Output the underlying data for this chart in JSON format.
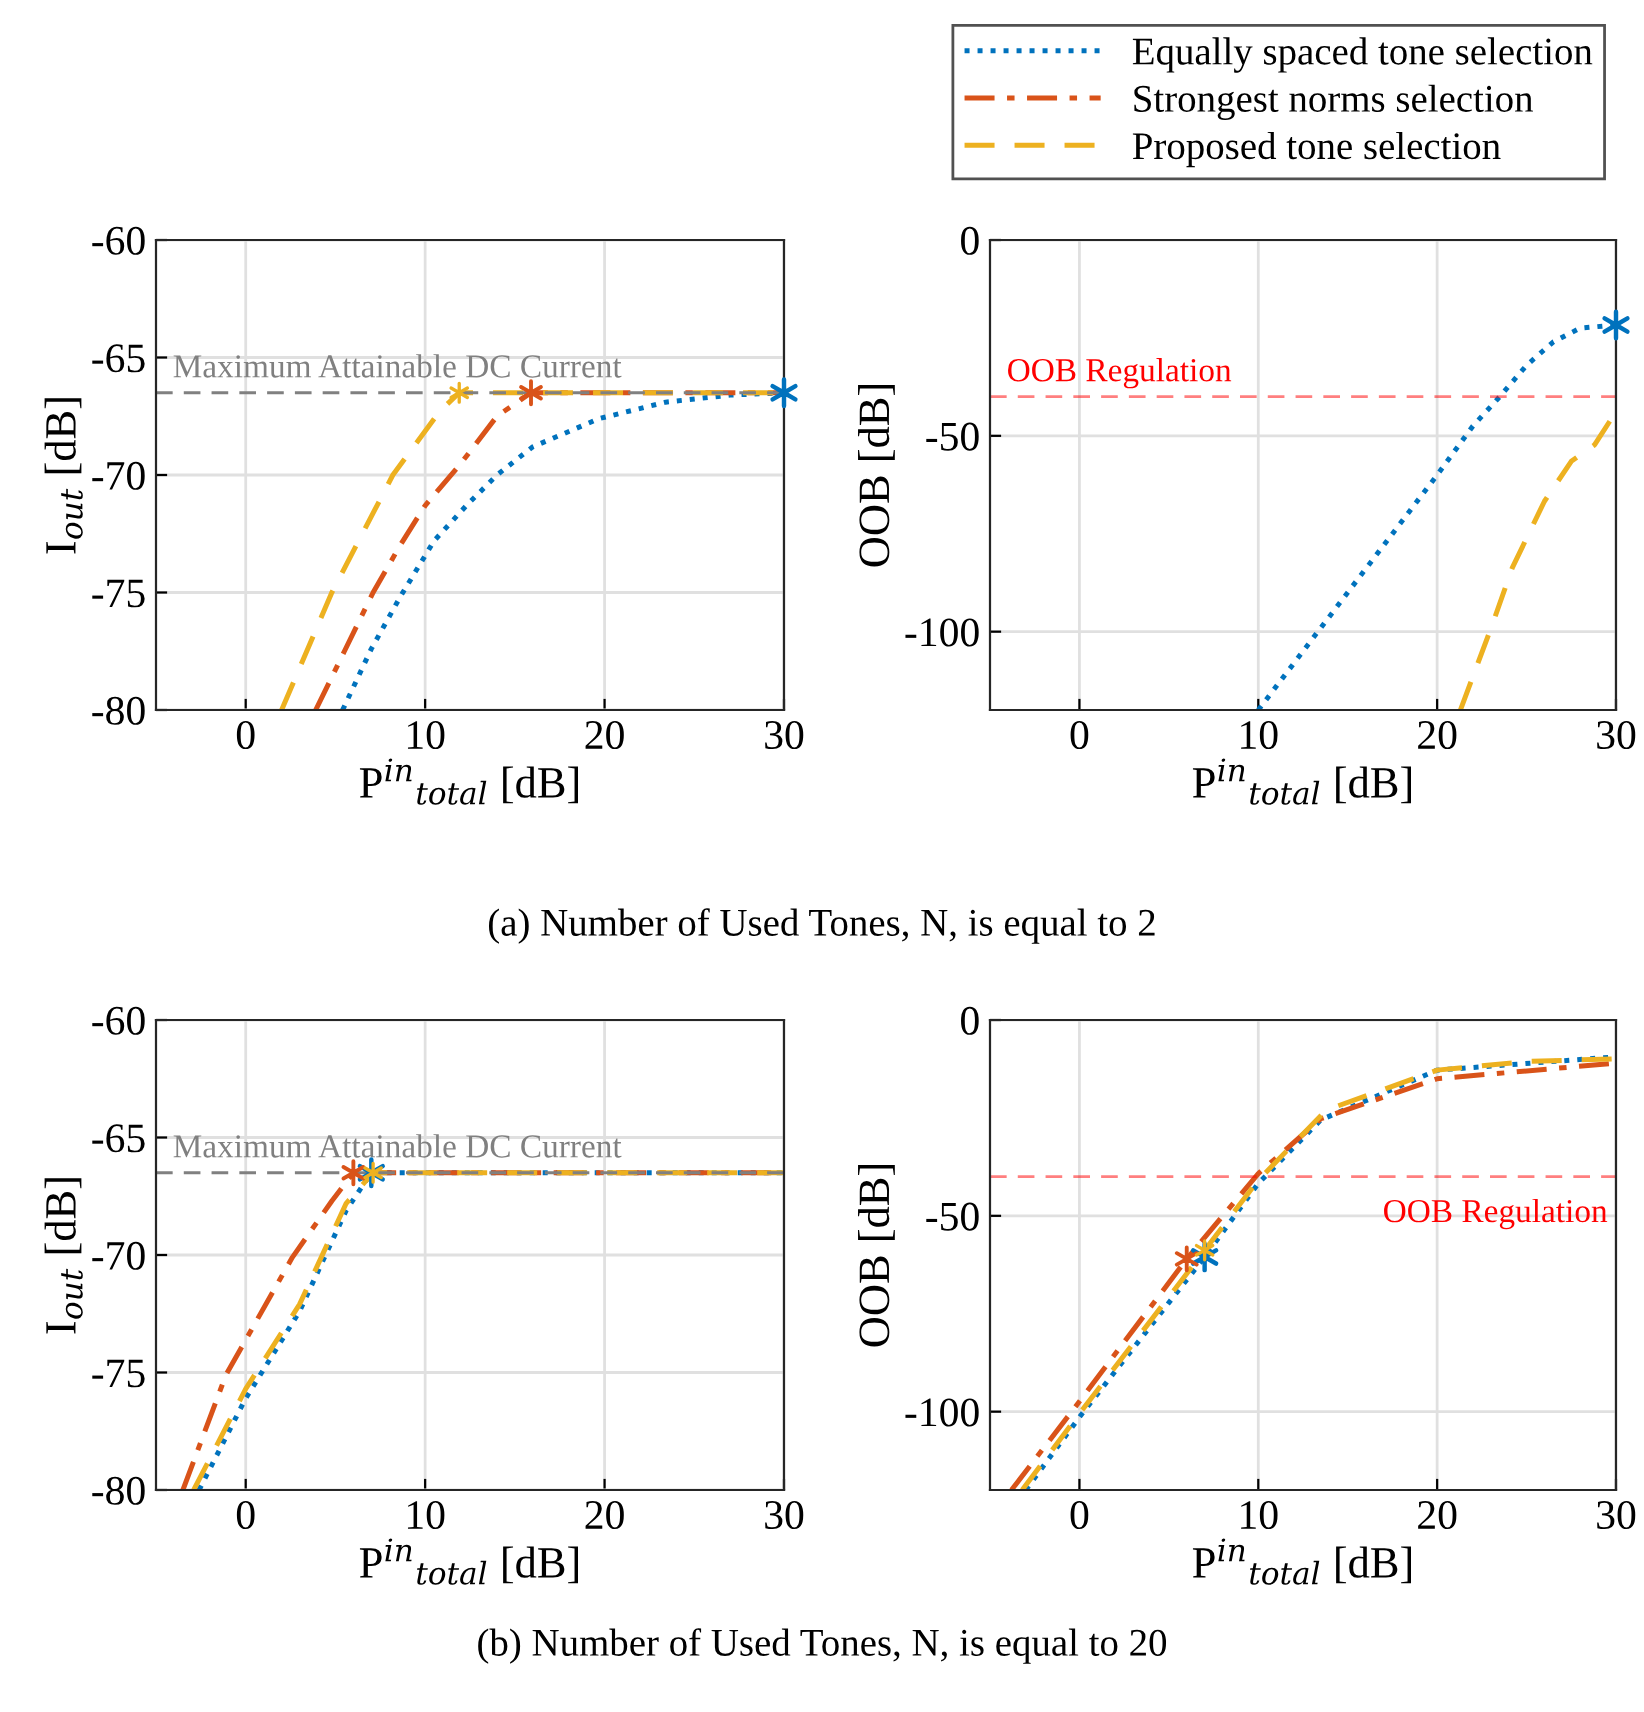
{
  "chart_data": [
    {
      "type": "line",
      "xlabel": "P$^{in}$$_{total}$ [dB]",
      "ylabel": "I$_{out}$ [dB]",
      "xlim": [
        -5,
        30
      ],
      "xticks": [
        0,
        10,
        20,
        30
      ],
      "ylim": [
        -80,
        -60
      ],
      "yticks": [
        -80,
        -75,
        -70,
        -65,
        -60
      ],
      "grid": true,
      "legend": "top right",
      "annotations": [
        "(a) Number of Used Tones, N, is equal to 2"
      ],
      "ref_lines": [
        {
          "axis": "y",
          "value": -66.5,
          "label": "Maximum Attainable DC Current",
          "color": "#808080",
          "line_style": "dashed"
        }
      ],
      "series": [
        {
          "name": "Equally spaced tone selection",
          "color": "#0072bd",
          "line_style": "dotted",
          "x": [
            5.4,
            7,
            8.6,
            10.5,
            12.3,
            14,
            16,
            19.7,
            23.4,
            27,
            30
          ],
          "values": [
            -80,
            -77.4,
            -75.2,
            -72.8,
            -71.3,
            -70,
            -68.8,
            -67.6,
            -66.9,
            -66.6,
            -66.5
          ]
        },
        {
          "name": "Strongest norms selection",
          "color": "#d95319",
          "line_style": "dashdot",
          "x": [
            3.9,
            5.5,
            7.1,
            8.6,
            10,
            12,
            14,
            15.9,
            30
          ],
          "values": [
            -80,
            -77.5,
            -75,
            -73,
            -71.3,
            -69.5,
            -67.5,
            -66.5,
            -66.5
          ]
        },
        {
          "name": "Proposed tone selection",
          "color": "#edb120",
          "line_style": "dashed",
          "x": [
            2,
            4.8,
            8.2,
            10.8,
            11.9,
            30
          ],
          "values": [
            -80,
            -75,
            -70,
            -67.3,
            -66.5,
            -66.5
          ]
        },
        {
          "type": "scatter",
          "marker": "cross",
          "color": "#0072bd",
          "x": [
            30
          ],
          "values": [
            -66.5
          ]
        },
        {
          "type": "scatter",
          "marker": "cross",
          "color": "#d95319",
          "x": [
            15.9
          ],
          "values": [
            -66.5
          ]
        },
        {
          "type": "scatter",
          "marker": "cross",
          "color": "#edb120",
          "x": [
            11.9
          ],
          "values": [
            -66.5
          ]
        }
      ]
    },
    {
      "type": "line",
      "xlabel": "P$^{in}$$_{total}$ [dB]",
      "ylabel": "OOB [dB]",
      "xlim": [
        -5,
        30
      ],
      "xticks": [
        0,
        10,
        20,
        30
      ],
      "ylim": [
        -120,
        0
      ],
      "yticks": [
        -100,
        -50,
        0
      ],
      "grid": true,
      "ref_lines": [
        {
          "axis": "y",
          "value": -40,
          "label": "OOB Regulation",
          "color": "#ff0000",
          "line_style": "dashed"
        }
      ],
      "series": [
        {
          "color": "#0072bd",
          "line_style": "dotted",
          "x": [
            10,
            15,
            20,
            22,
            23.5,
            25,
            26.5,
            28,
            30
          ],
          "values": [
            -120,
            -90,
            -60,
            -47.5,
            -40,
            -32,
            -26,
            -22.5,
            -21.7
          ]
        },
        {
          "color": "#edb120",
          "line_style": "dashed",
          "x": [
            21.3,
            23.1,
            24.2,
            26,
            27.5,
            28.8,
            30
          ],
          "values": [
            -120,
            -98,
            -83.7,
            -66.7,
            -56.5,
            -52.3,
            -43.8
          ]
        },
        {
          "type": "scatter",
          "marker": "cross",
          "color": "#0072bd",
          "x": [
            30
          ],
          "values": [
            -21.7
          ]
        }
      ]
    },
    {
      "type": "line",
      "xlabel": "P$^{in}$$_{total}$ [dB]",
      "ylabel": "I$_{out}$ [dB]",
      "xlim": [
        -5,
        30
      ],
      "xticks": [
        0,
        10,
        20,
        30
      ],
      "ylim": [
        -80,
        -60
      ],
      "yticks": [
        -80,
        -75,
        -70,
        -65,
        -60
      ],
      "grid": true,
      "annotations": [
        "(b) Number of Used Tones, N, is equal to 20"
      ],
      "ref_lines": [
        {
          "axis": "y",
          "value": -66.5,
          "label": "Maximum Attainable DC Current",
          "color": "#808080",
          "line_style": "dashed"
        }
      ],
      "series": [
        {
          "color": "#0072bd",
          "line_style": "dotted",
          "x": [
            -2.6,
            0,
            3,
            5.6,
            7,
            30
          ],
          "values": [
            -80,
            -76.1,
            -72.4,
            -68.1,
            -66.5,
            -66.5
          ]
        },
        {
          "color": "#d95319",
          "line_style": "dashdot",
          "x": [
            -3.5,
            -1.1,
            2.6,
            4.8,
            6,
            30
          ],
          "values": [
            -80,
            -75.1,
            -70.1,
            -67.7,
            -66.5,
            -66.5
          ]
        },
        {
          "color": "#edb120",
          "line_style": "dashed",
          "x": [
            -2.9,
            0,
            3,
            5.6,
            7.1,
            30
          ],
          "values": [
            -80,
            -75.7,
            -72.1,
            -67.8,
            -66.5,
            -66.5
          ]
        },
        {
          "type": "scatter",
          "marker": "cross",
          "color": "#0072bd",
          "x": [
            7
          ],
          "values": [
            -66.5
          ]
        },
        {
          "type": "scatter",
          "marker": "cross",
          "color": "#d95319",
          "x": [
            6
          ],
          "values": [
            -66.5
          ]
        },
        {
          "type": "scatter",
          "marker": "cross",
          "color": "#edb120",
          "x": [
            7.1
          ],
          "values": [
            -66.5
          ]
        }
      ]
    },
    {
      "type": "line",
      "xlabel": "P$^{in}$$_{total}$ [dB]",
      "ylabel": "OOB [dB]",
      "xlim": [
        -5,
        30
      ],
      "xticks": [
        0,
        10,
        20,
        30
      ],
      "ylim": [
        -120,
        0
      ],
      "yticks": [
        -100,
        -50,
        0
      ],
      "grid": true,
      "ref_lines": [
        {
          "axis": "y",
          "value": -40,
          "label": "OOB Regulation",
          "color": "#ff0000",
          "line_style": "dashed"
        }
      ],
      "series": [
        {
          "color": "#0072bd",
          "line_style": "dotted",
          "x": [
            -3,
            0,
            7,
            10,
            13.5,
            20,
            30
          ],
          "values": [
            -120,
            -101.4,
            -60.5,
            -41.7,
            -25.5,
            -12.8,
            -9.4
          ]
        },
        {
          "color": "#d95319",
          "line_style": "dashdot",
          "x": [
            -3.8,
            0,
            6,
            10,
            13.5,
            20,
            30
          ],
          "values": [
            -120,
            -97.4,
            -61,
            -39.2,
            -25.2,
            -15,
            -11
          ]
        },
        {
          "color": "#edb120",
          "line_style": "dashed",
          "x": [
            -3.2,
            0,
            7,
            10,
            13.8,
            20,
            25,
            30
          ],
          "values": [
            -120,
            -100.5,
            -58.8,
            -40.9,
            -23,
            -12.8,
            -10.6,
            -9.9
          ]
        },
        {
          "type": "scatter",
          "marker": "cross",
          "color": "#0072bd",
          "x": [
            7
          ],
          "values": [
            -60.5
          ]
        },
        {
          "type": "scatter",
          "marker": "cross",
          "color": "#d95319",
          "x": [
            6
          ],
          "values": [
            -61
          ]
        },
        {
          "type": "scatter",
          "marker": "cross",
          "color": "#edb120",
          "x": [
            7
          ],
          "values": [
            -58.8
          ]
        }
      ]
    }
  ]
}
